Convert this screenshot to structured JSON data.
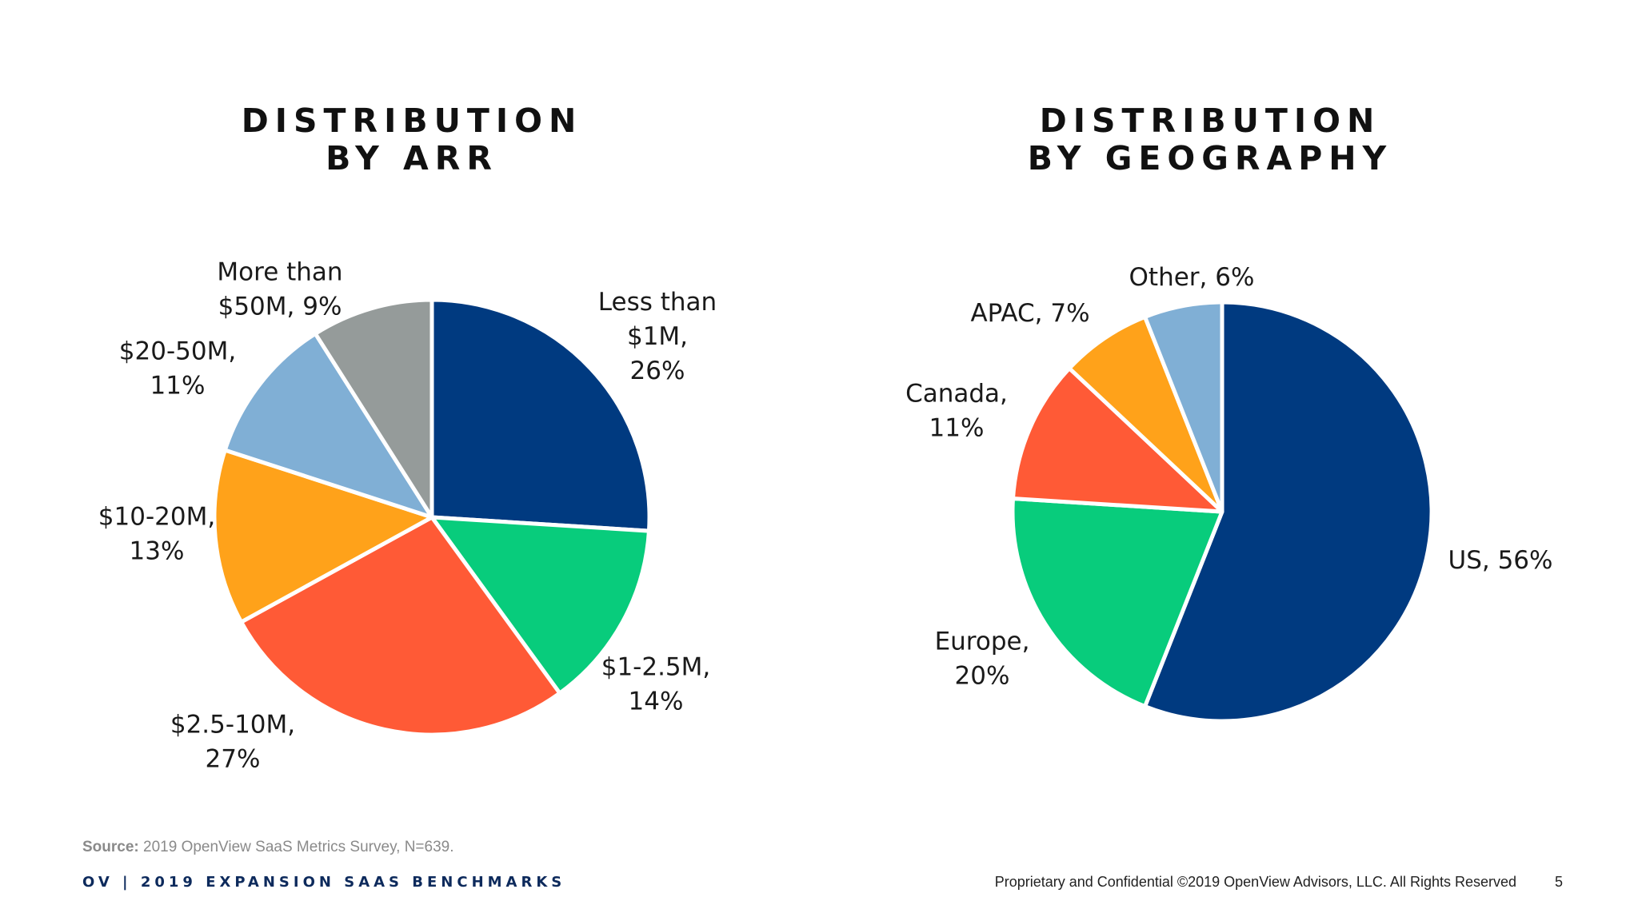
{
  "footer": {
    "source_label": "Source:",
    "source_text": "2019 OpenView SaaS Metrics Survey, N=639.",
    "brand": "OV | 2019 EXPANSION SAAS BENCHMARKS",
    "legal": "Proprietary and Confidential ©2019 OpenView Advisors, LLC. All Rights Reserved",
    "page_number": "5"
  },
  "chart_data": [
    {
      "type": "pie",
      "title_lines": [
        "DISTRIBUTION",
        "BY ARR"
      ],
      "unit": "%",
      "start_angle_deg": 0,
      "direction": "clockwise",
      "slices": [
        {
          "label_lines": [
            "Less than",
            "$1M,",
            "26%"
          ],
          "value": 26,
          "color": "#003A80"
        },
        {
          "label_lines": [
            "$1-2.5M,",
            "14%"
          ],
          "value": 14,
          "color": "#08CC7C"
        },
        {
          "label_lines": [
            "$2.5-10M,",
            "27%"
          ],
          "value": 27,
          "color": "#FF5A36"
        },
        {
          "label_lines": [
            "$10-20M,",
            "13%"
          ],
          "value": 13,
          "color": "#FFA21A"
        },
        {
          "label_lines": [
            "$20-50M,",
            "11%"
          ],
          "value": 11,
          "color": "#80AFD5"
        },
        {
          "label_lines": [
            "More than",
            "$50M, 9%"
          ],
          "value": 9,
          "color": "#959B9A"
        }
      ]
    },
    {
      "type": "pie",
      "title_lines": [
        "DISTRIBUTION",
        "BY GEOGRAPHY"
      ],
      "unit": "%",
      "start_angle_deg": 0,
      "direction": "clockwise",
      "slices": [
        {
          "label_lines": [
            "US, 56%"
          ],
          "value": 56,
          "color": "#003A80"
        },
        {
          "label_lines": [
            "Europe,",
            "20%"
          ],
          "value": 20,
          "color": "#08CC7C"
        },
        {
          "label_lines": [
            "Canada,",
            "11%"
          ],
          "value": 11,
          "color": "#FF5A36"
        },
        {
          "label_lines": [
            "APAC, 7%"
          ],
          "value": 7,
          "color": "#FFA21A"
        },
        {
          "label_lines": [
            "Other, 6%"
          ],
          "value": 6,
          "color": "#80AFD5"
        }
      ]
    }
  ]
}
